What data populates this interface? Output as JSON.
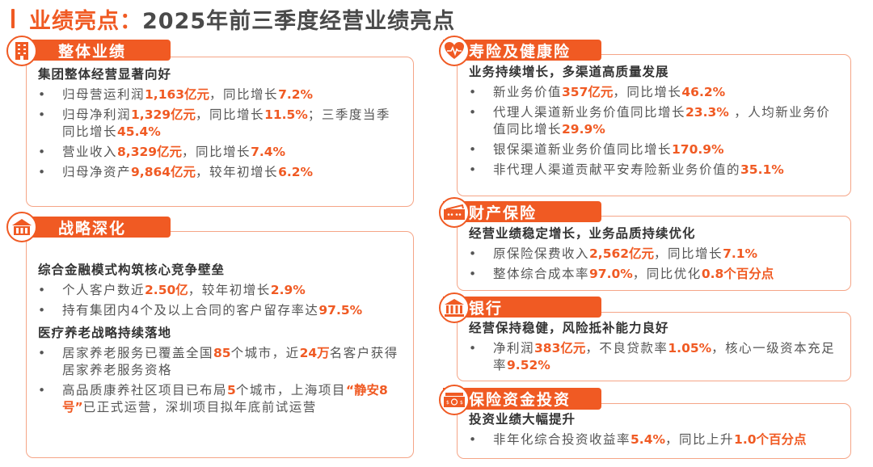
{
  "title": {
    "accent": "业绩亮点：",
    "main": "2025年前三季度经营业绩亮点"
  },
  "colors": {
    "accent": "#f05a23",
    "border": "#f5a587"
  },
  "sections": [
    {
      "id": "overall",
      "icon": "building-icon",
      "header": "整体业绩",
      "groups": [
        {
          "subtitle": "集团整体经营显著向好",
          "bullets": [
            [
              {
                "t": "归母营运利润"
              },
              {
                "t": "1,163亿元",
                "h": true
              },
              {
                "t": "，同比增长"
              },
              {
                "t": "7.2%",
                "h": true
              }
            ],
            [
              {
                "t": "归母净利润"
              },
              {
                "t": "1,329亿元",
                "h": true
              },
              {
                "t": "，同比增长"
              },
              {
                "t": "11.5%",
                "h": true
              },
              {
                "t": "；三季度当季同比增长"
              },
              {
                "t": "45.4%",
                "h": true
              }
            ],
            [
              {
                "t": "营业收入"
              },
              {
                "t": "8,329亿元",
                "h": true
              },
              {
                "t": "，同比增长"
              },
              {
                "t": "7.4%",
                "h": true
              }
            ],
            [
              {
                "t": "归母净资产"
              },
              {
                "t": "9,864亿元",
                "h": true
              },
              {
                "t": "，较年初增长"
              },
              {
                "t": "6.2%",
                "h": true
              }
            ]
          ]
        }
      ]
    },
    {
      "id": "strategy",
      "icon": "house-icon",
      "header": "战略深化",
      "groups": [
        {
          "subtitle": "综合金融模式构筑核心竞争壁垒",
          "bullets": [
            [
              {
                "t": "个人客户数近"
              },
              {
                "t": "2.50亿",
                "h": true
              },
              {
                "t": "，较年初增长"
              },
              {
                "t": "2.9%",
                "h": true
              }
            ],
            [
              {
                "t": "持有集团内4个及以上合同的客户留存率达"
              },
              {
                "t": "97.5%",
                "h": true
              }
            ]
          ]
        },
        {
          "subtitle": "医疗养老战略持续落地",
          "bullets": [
            [
              {
                "t": "居家养老服务已覆盖全国"
              },
              {
                "t": "85",
                "h": true
              },
              {
                "t": "个城市，近"
              },
              {
                "t": "24万",
                "h": true
              },
              {
                "t": "名客户获得居家养老服务资格"
              }
            ],
            [
              {
                "t": "高品质康养社区项目已布局"
              },
              {
                "t": "5",
                "h": true
              },
              {
                "t": "个城市，上海项目"
              },
              {
                "t": "“静安8号”",
                "h": true
              },
              {
                "t": "已正式运营，深圳项目拟年底前试运营"
              }
            ]
          ]
        }
      ]
    },
    {
      "id": "life",
      "icon": "heart-pulse-icon",
      "header": "寿险及健康险",
      "groups": [
        {
          "subtitle": "业务持续增长，多渠道高质量发展",
          "bullets": [
            [
              {
                "t": "新业务价值"
              },
              {
                "t": "357亿元",
                "h": true
              },
              {
                "t": "，同比增长"
              },
              {
                "t": "46.2%",
                "h": true
              }
            ],
            [
              {
                "t": "代理人渠道新业务价值同比增长"
              },
              {
                "t": "23.3%",
                "h": true
              },
              {
                "t": " ，人均新业务价值同比增长"
              },
              {
                "t": "29.9%",
                "h": true
              }
            ],
            [
              {
                "t": "银保渠道新业务价值同比增长"
              },
              {
                "t": "170.9%",
                "h": true
              }
            ],
            [
              {
                "t": "非代理人渠道贡献平安寿险新业务价值的"
              },
              {
                "t": "35.1%",
                "h": true
              }
            ]
          ]
        }
      ]
    },
    {
      "id": "property",
      "icon": "banknote-icon",
      "header": "财产保险",
      "groups": [
        {
          "subtitle": "经营业绩稳定增长，业务品质持续优化",
          "bullets": [
            [
              {
                "t": "原保险保费收入"
              },
              {
                "t": "2,562亿元",
                "h": true
              },
              {
                "t": "，同比增长"
              },
              {
                "t": "7.1%",
                "h": true
              }
            ],
            [
              {
                "t": "整体综合成本率"
              },
              {
                "t": "97.0%",
                "h": true
              },
              {
                "t": "，同比优化"
              },
              {
                "t": "0.8个百分点",
                "h": true
              }
            ]
          ]
        }
      ]
    },
    {
      "id": "bank",
      "icon": "bank-icon",
      "header": "银行",
      "groups": [
        {
          "subtitle": "经营保持稳健，风险抵补能力良好",
          "bullets": [
            [
              {
                "t": "净利润"
              },
              {
                "t": "383亿元",
                "h": true
              },
              {
                "t": "，不良贷款率"
              },
              {
                "t": "1.05%",
                "h": true
              },
              {
                "t": "，核心一级资本充足率"
              },
              {
                "t": "9.52%",
                "h": true
              }
            ]
          ]
        }
      ]
    },
    {
      "id": "invest",
      "icon": "money-stack-icon",
      "header": "保险资金投资",
      "groups": [
        {
          "subtitle": "投资业绩大幅提升",
          "bullets": [
            [
              {
                "t": "非年化综合投资收益率"
              },
              {
                "t": "5.4%",
                "h": true
              },
              {
                "t": "，同比上升"
              },
              {
                "t": "1.0个百分点",
                "h": true
              }
            ]
          ]
        }
      ]
    }
  ]
}
